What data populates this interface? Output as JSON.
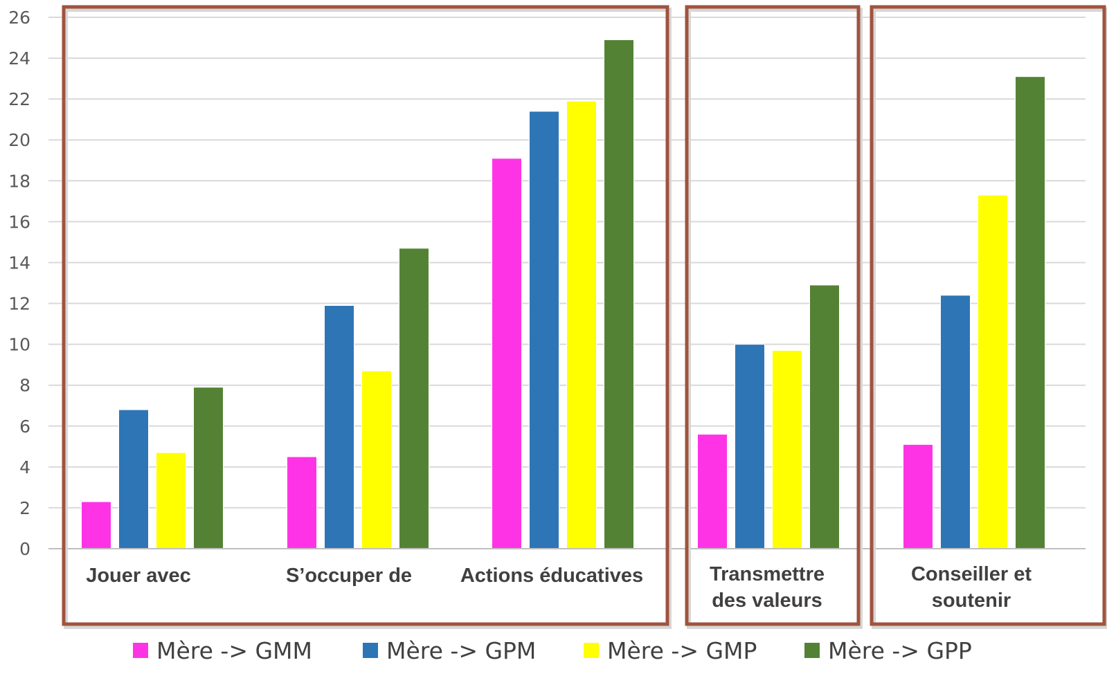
{
  "chart_data": {
    "type": "bar",
    "title": "",
    "xlabel": "",
    "ylabel": "",
    "ylim": [
      0,
      26
    ],
    "yticks": [
      0,
      2,
      4,
      6,
      8,
      10,
      12,
      14,
      16,
      18,
      20,
      22,
      24,
      26
    ],
    "grid": true,
    "legend_position": "bottom",
    "categories": [
      [
        "Jouer avec"
      ],
      [
        "S’occuper de"
      ],
      [
        "Actions éducatives"
      ],
      [
        "Transmettre",
        "des valeurs"
      ],
      [
        "Conseiller et",
        "soutenir"
      ]
    ],
    "groups": [
      [
        0,
        1,
        2
      ],
      [
        3
      ],
      [
        4
      ]
    ],
    "group_box_color": "#A0533E",
    "series": [
      {
        "name": "Mère -> GMM",
        "color": "#FF33E6",
        "values": [
          2.3,
          4.5,
          19.1,
          5.6,
          5.1
        ]
      },
      {
        "name": "Mère -> GPM",
        "color": "#2E75B6",
        "values": [
          6.8,
          11.9,
          21.4,
          10.0,
          12.4
        ]
      },
      {
        "name": "Mère -> GMP",
        "color": "#FFFF00",
        "values": [
          4.7,
          8.7,
          21.9,
          9.7,
          17.3
        ]
      },
      {
        "name": "Mère -> GPP",
        "color": "#548235",
        "values": [
          7.9,
          14.7,
          24.9,
          12.9,
          23.1
        ]
      }
    ]
  }
}
